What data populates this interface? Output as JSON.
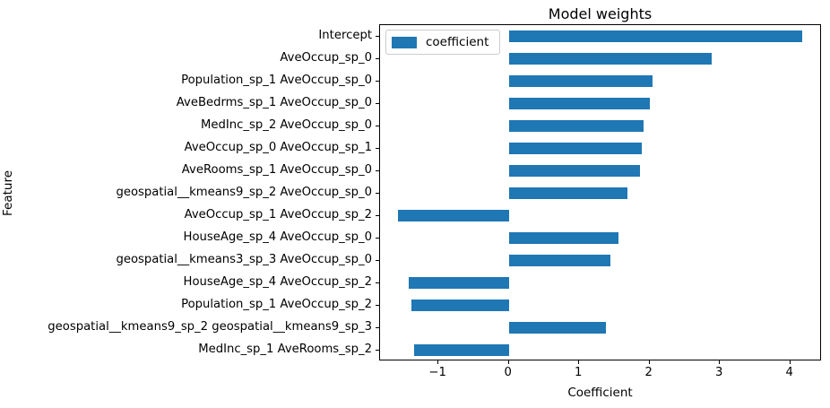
{
  "chart_data": {
    "type": "bar",
    "orientation": "horizontal",
    "title": "Model weights",
    "xlabel": "Coefficient",
    "ylabel": "Feature",
    "legend": {
      "label": "coefficient",
      "position": "upper-left"
    },
    "bar_color": "#1f77b4",
    "grid": false,
    "categories": [
      "Intercept",
      "AveOccup_sp_0",
      "Population_sp_1 AveOccup_sp_0",
      "AveBedrms_sp_1 AveOccup_sp_0",
      "MedInc_sp_2 AveOccup_sp_0",
      "AveOccup_sp_0 AveOccup_sp_1",
      "AveRooms_sp_1 AveOccup_sp_0",
      "geospatial__kmeans9_sp_2 AveOccup_sp_0",
      "AveOccup_sp_1 AveOccup_sp_2",
      "HouseAge_sp_4 AveOccup_sp_0",
      "geospatial__kmeans3_sp_3 AveOccup_sp_0",
      "HouseAge_sp_4 AveOccup_sp_2",
      "Population_sp_1 AveOccup_sp_2",
      "geospatial__kmeans9_sp_2 geospatial__kmeans9_sp_3",
      "MedInc_sp_1 AveRooms_sp_2"
    ],
    "values": [
      4.17,
      2.88,
      2.04,
      2.0,
      1.92,
      1.89,
      1.86,
      1.68,
      -1.58,
      1.56,
      1.44,
      -1.42,
      -1.39,
      1.38,
      -1.34
    ],
    "xticks": [
      -1,
      0,
      1,
      2,
      3,
      4
    ],
    "xlim": [
      -1.83,
      4.45
    ]
  }
}
